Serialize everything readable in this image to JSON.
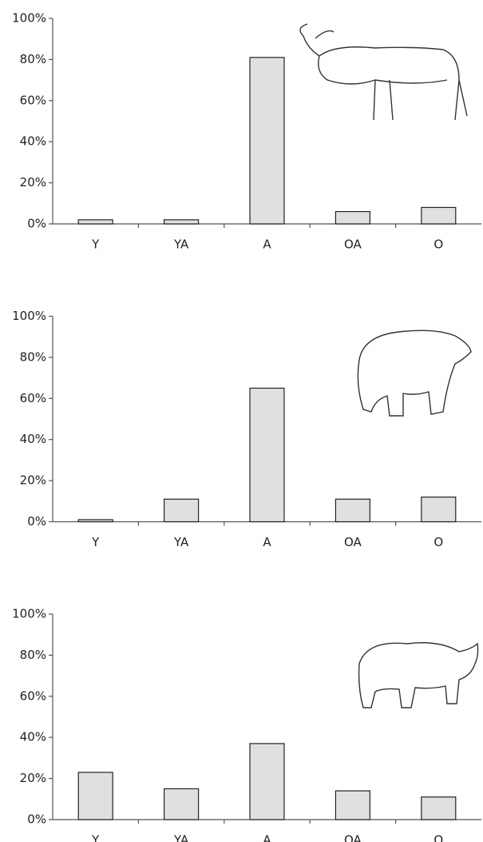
{
  "chart_data": [
    {
      "type": "bar",
      "categories": [
        "Y",
        "YA",
        "A",
        "OA",
        "O"
      ],
      "values": [
        2,
        2,
        81,
        6,
        8
      ],
      "color": "#e0e0e0",
      "ylim": [
        0,
        100
      ],
      "yticks": [
        {
          "value": 0,
          "label": "0%"
        },
        {
          "value": 20,
          "label": "20%"
        },
        {
          "value": 40,
          "label": "40%"
        },
        {
          "value": 60,
          "label": "60%"
        },
        {
          "value": 80,
          "label": "80%"
        },
        {
          "value": 100,
          "label": "100%"
        }
      ]
    },
    {
      "type": "bar",
      "categories": [
        "Y",
        "YA",
        "A",
        "OA",
        "O"
      ],
      "values": [
        1,
        11,
        65,
        11,
        12
      ],
      "color": "#e0e0e0",
      "ylim": [
        0,
        100
      ],
      "yticks": [
        {
          "value": 0,
          "label": "0%"
        },
        {
          "value": 20,
          "label": "20%"
        },
        {
          "value": 40,
          "label": "40%"
        },
        {
          "value": 60,
          "label": "60%"
        },
        {
          "value": 80,
          "label": "80%"
        },
        {
          "value": 100,
          "label": "100%"
        }
      ]
    },
    {
      "type": "bar",
      "categories": [
        "Y",
        "YA",
        "A",
        "OA",
        "O"
      ],
      "values": [
        23,
        15,
        37,
        14,
        11
      ],
      "color": "#e0e0e0",
      "ylim": [
        0,
        100
      ],
      "yticks": [
        {
          "value": 0,
          "label": "0%"
        },
        {
          "value": 20,
          "label": "20%"
        },
        {
          "value": 40,
          "label": "40%"
        },
        {
          "value": 60,
          "label": "60%"
        },
        {
          "value": 80,
          "label": "80%"
        },
        {
          "value": 100,
          "label": "100%"
        }
      ]
    }
  ]
}
